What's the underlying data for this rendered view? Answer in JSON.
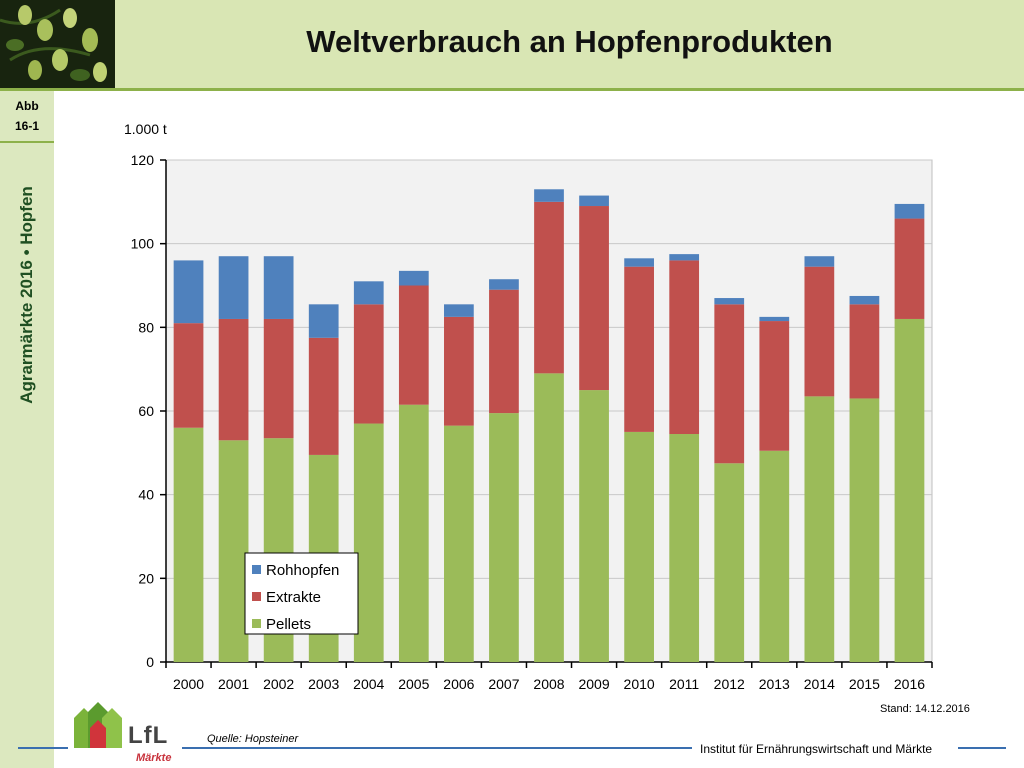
{
  "header": {
    "title": "Weltverbrauch an Hopfenprodukten"
  },
  "sidebar": {
    "abb_line1": "Abb",
    "abb_line2": "16-1",
    "vertical_text": "Agrarmärkte 2016 • Hopfen"
  },
  "footer": {
    "source": "Quelle: Hopsteiner",
    "stand": "Stand: 14.12.2016",
    "institute": "Institut für Ernährungswirtschaft und Märkte",
    "logo_text": "LfL",
    "logo_sub": "Märkte"
  },
  "colors": {
    "Pellets": "#9bbb59",
    "Extrakte": "#c0504d",
    "Rohhopfen": "#4f81bd",
    "plot_bg": "#f2f2f2"
  },
  "chart_data": {
    "type": "bar",
    "stacked": true,
    "unit_label": "1.000 t",
    "ylim": [
      0,
      120
    ],
    "yticks": [
      0,
      20,
      40,
      60,
      80,
      100,
      120
    ],
    "grid": true,
    "legend_position": "bottom-left",
    "legend_order": [
      "Rohhopfen",
      "Extrakte",
      "Pellets"
    ],
    "categories": [
      "2000",
      "2001",
      "2002",
      "2003",
      "2004",
      "2005",
      "2006",
      "2007",
      "2008",
      "2009",
      "2010",
      "2011",
      "2012",
      "2013",
      "2014",
      "2015",
      "2016"
    ],
    "series": [
      {
        "name": "Pellets",
        "values": [
          56,
          53,
          53.5,
          49.5,
          57,
          61.5,
          56.5,
          59.5,
          69,
          65,
          55,
          54.5,
          47.5,
          50.5,
          63.5,
          63,
          82
        ]
      },
      {
        "name": "Extrakte",
        "values": [
          25,
          29,
          28.5,
          28,
          28.5,
          28.5,
          26,
          29.5,
          41,
          44,
          39.5,
          41.5,
          38,
          31,
          31,
          22.5,
          24
        ]
      },
      {
        "name": "Rohhopfen",
        "values": [
          15,
          15,
          15,
          8,
          5.5,
          3.5,
          3,
          2.5,
          3,
          2.5,
          2,
          1.5,
          1.5,
          1,
          2.5,
          2,
          3.5
        ]
      }
    ]
  }
}
